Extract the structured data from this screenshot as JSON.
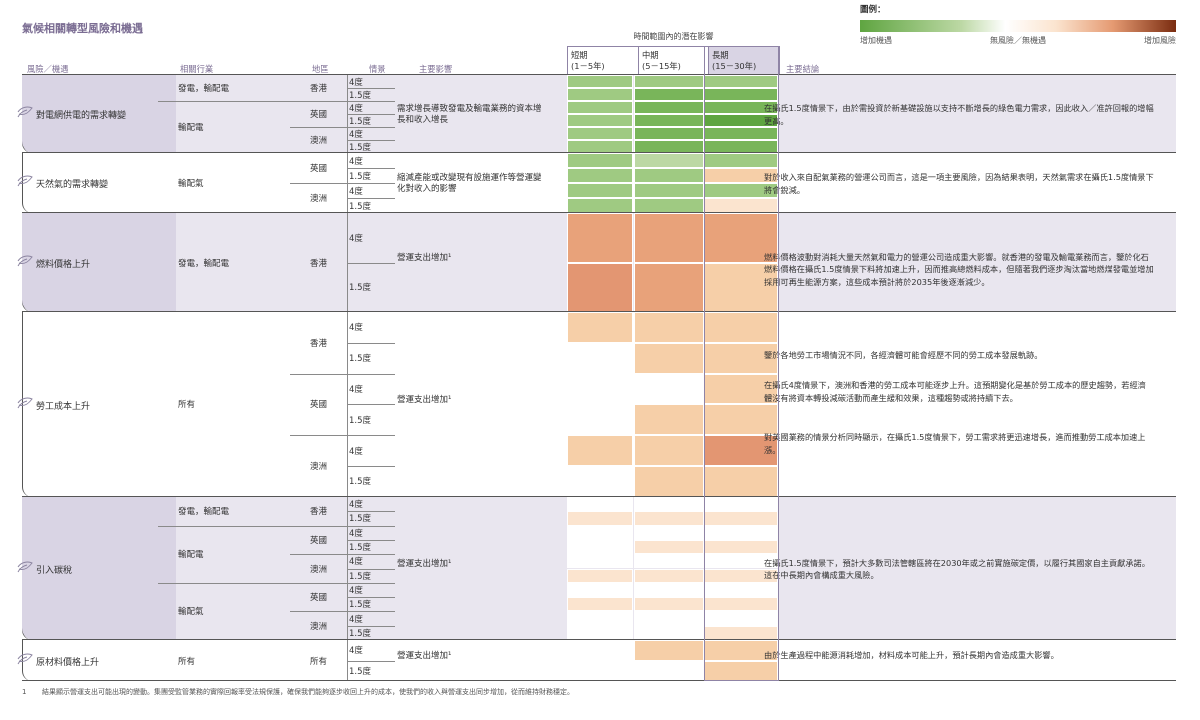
{
  "title": "氣候相關轉型風險和機遇",
  "legend": {
    "title": "圖例：",
    "labels": [
      "增加機遇",
      "無風險／無機遇",
      "增加風險"
    ]
  },
  "timeframes": {
    "header": "時間範圍內的潛在影響",
    "items": [
      {
        "name": "短期",
        "range": "(1－5年)"
      },
      {
        "name": "中期",
        "range": "(5－15年)"
      },
      {
        "name": "長期",
        "range": "(15－30年)"
      }
    ]
  },
  "headers": {
    "risk": "風險／機遇",
    "industry": "相關行業",
    "region": "地區",
    "scenario": "情景",
    "impact": "主要影響",
    "conclusion": "主要結論"
  },
  "colors": {
    "G1": "#5fa541",
    "G2": "#79b55a",
    "G3": "#9fca82",
    "G4": "#bcd8a4",
    "W": "#ffffff",
    "P1": "#fbe4cf",
    "P2": "#f6cfa8",
    "O1": "#e8a27a",
    "O2": "#e39672"
  },
  "sections": [
    {
      "risk": "對電網供電的需求轉變",
      "shaded": true,
      "impact": "需求增長導致發電及輸電業務的資本增長和收入增長",
      "conclusion": "在攝氏1.5度情景下，由於需投資於新基礎設施以支持不斷增長的綠色電力需求，因此收入／准許回報的增幅更高。",
      "rows": [
        {
          "industry": "發電，輸配電",
          "region": "香港",
          "scenario": "4度",
          "cells": [
            "G3",
            "G3",
            "G3"
          ]
        },
        {
          "scenario": "1.5度",
          "cells": [
            "G3",
            "G2",
            "G2"
          ]
        },
        {
          "industry": "輸配電",
          "region": "英國",
          "scenario": "4度",
          "cells": [
            "G3",
            "G2",
            "G2"
          ]
        },
        {
          "scenario": "1.5度",
          "cells": [
            "G3",
            "G2",
            "G1"
          ]
        },
        {
          "region": "澳洲",
          "scenario": "4度",
          "cells": [
            "G3",
            "G2",
            "G2"
          ]
        },
        {
          "scenario": "1.5度",
          "cells": [
            "G3",
            "G2",
            "G2"
          ]
        }
      ]
    },
    {
      "risk": "天然氣的需求轉變",
      "shaded": false,
      "impact": "縮減產能或改變現有設施運作等營運變化對收入的影響",
      "conclusion": "對於收入來自配氣業務的營運公司而言，這是一項主要風險，因為結果表明，天然氣需求在攝氏1.5度情景下將會銳減。",
      "rows": [
        {
          "industry": "輸配氣",
          "region": "英國",
          "scenario": "4度",
          "cells": [
            "G3",
            "G4",
            "G3"
          ]
        },
        {
          "scenario": "1.5度",
          "cells": [
            "G3",
            "G3",
            "P2"
          ]
        },
        {
          "region": "澳洲",
          "scenario": "4度",
          "cells": [
            "G3",
            "G3",
            "G3"
          ]
        },
        {
          "scenario": "1.5度",
          "cells": [
            "G3",
            "G3",
            "P1"
          ]
        }
      ]
    },
    {
      "risk": "燃料價格上升",
      "shaded": true,
      "impact": "營運支出增加¹",
      "conclusion": "燃料價格波動對消耗大量天然氣和電力的營運公司造成重大影響。就香港的發電及輸電業務而言，鑒於化石燃料價格在攝氏1.5度情景下料將加速上升，因而推高總燃料成本，但隨著我們逐步淘汰當地燃煤發電並增加採用可再生能源方案，這些成本預計將於2035年後逐漸減少。",
      "rows": [
        {
          "industry": "發電，輸配電",
          "region": "香港",
          "scenario": "4度",
          "cells": [
            "O1",
            "O1",
            "O1"
          ]
        },
        {
          "scenario": "1.5度",
          "cells": [
            "O2",
            "O1",
            "P2"
          ]
        }
      ]
    },
    {
      "risk": "勞工成本上升",
      "shaded": false,
      "impact": "營運支出增加¹",
      "conclusions": [
        "鑒於各地勞工市場情況不同，各經濟體可能會經歷不同的勞工成本發展軌跡。",
        "在攝氏4度情景下，澳洲和香港的勞工成本可能逐步上升。這預期變化是基於勞工成本的歷史趨勢，若經濟體沒有將資本轉投減碳活動而產生緩和效果，這種趨勢或將持續下去。",
        "對英國業務的情景分析同時顯示，在攝氏1.5度情景下，勞工需求將更迅速增長，進而推動勞工成本加速上漲。"
      ],
      "rows": [
        {
          "industry": "所有",
          "region": "香港",
          "scenario": "4度",
          "cells": [
            "P2",
            "P2",
            "P2"
          ]
        },
        {
          "scenario": "1.5度",
          "cells": [
            "W",
            "P2",
            "P2"
          ]
        },
        {
          "region": "英國",
          "scenario": "4度",
          "cells": [
            "W",
            "W",
            "P2"
          ]
        },
        {
          "scenario": "1.5度",
          "cells": [
            "W",
            "P2",
            "P2"
          ]
        },
        {
          "region": "澳洲",
          "scenario": "4度",
          "cells": [
            "P2",
            "P2",
            "O2"
          ]
        },
        {
          "scenario": "1.5度",
          "cells": [
            "W",
            "P2",
            "P2"
          ]
        }
      ]
    },
    {
      "risk": "引入碳稅",
      "shaded": true,
      "impact": "營運支出增加¹",
      "conclusion": "在攝氏1.5度情景下，預計大多數司法管轄區將在2030年或之前實施碳定價，以履行其國家自主貢獻承諾。這在中長期內會構成重大風險。",
      "rows": [
        {
          "industry": "發電，輸配電",
          "region": "香港",
          "scenario": "4度",
          "cells": [
            "W",
            "W",
            "W"
          ]
        },
        {
          "scenario": "1.5度",
          "cells": [
            "P1",
            "P1",
            "P1"
          ]
        },
        {
          "industry": "輸配電",
          "region": "英國",
          "scenario": "4度",
          "cells": [
            "W",
            "W",
            "W"
          ]
        },
        {
          "scenario": "1.5度",
          "cells": [
            "W",
            "P1",
            "P1"
          ]
        },
        {
          "region": "澳洲",
          "scenario": "4度",
          "cells": [
            "W",
            "W",
            "W"
          ]
        },
        {
          "scenario": "1.5度",
          "cells": [
            "P1",
            "P1",
            "P1"
          ]
        },
        {
          "industry": "輸配氣",
          "region": "英國",
          "scenario": "4度",
          "cells": [
            "W",
            "W",
            "W"
          ]
        },
        {
          "scenario": "1.5度",
          "cells": [
            "P1",
            "P1",
            "P1"
          ]
        },
        {
          "region": "澳洲",
          "scenario": "4度",
          "cells": [
            "W",
            "W",
            "W"
          ]
        },
        {
          "scenario": "1.5度",
          "cells": [
            "W",
            "W",
            "P1"
          ]
        }
      ]
    },
    {
      "risk": "原材料價格上升",
      "shaded": false,
      "impact": "營運支出增加¹",
      "conclusion": "由於生產過程中能源消耗增加，材料成本可能上升，預計長期內會造成重大影響。",
      "rows": [
        {
          "industry": "所有",
          "region": "所有",
          "scenario": "4度",
          "cells": [
            "W",
            "P2",
            "P2"
          ]
        },
        {
          "scenario": "1.5度",
          "cells": [
            "W",
            "W",
            "P2"
          ]
        }
      ]
    }
  ],
  "footnote": {
    "number": "1",
    "text": "結果顯示營運支出可能出現的變動。集團受監管業務的實際回報率受法規保護，確保我們能夠逐步收回上升的成本，使我們的收入與營運支出同步增加，從而維持財務穩定。"
  }
}
